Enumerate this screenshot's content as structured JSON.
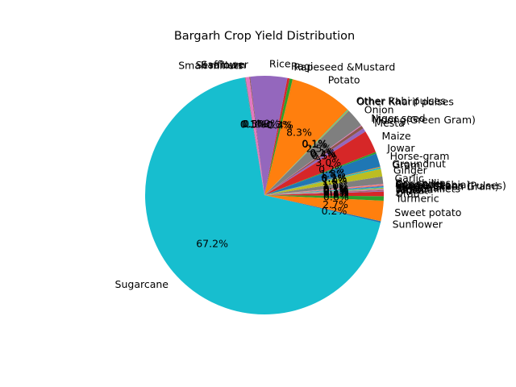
{
  "chart_data": {
    "type": "pie",
    "title": "Bargarh Crop Yield Distribution",
    "slices": [
      {
        "label": "Sugarcane",
        "value": 67.2,
        "pct_label": "67.2%",
        "color": "#17becf"
      },
      {
        "label": "Sunflower",
        "value": 0.2,
        "pct_label": "0.2%",
        "color": "#1f77b4"
      },
      {
        "label": "Sweet potato",
        "value": 2.7,
        "pct_label": "2.7%",
        "color": "#ff7f0e"
      },
      {
        "label": "Turmeric",
        "value": 0.6,
        "pct_label": "0.6%",
        "color": "#2ca02c"
      },
      {
        "label": "Urad",
        "value": 0.6,
        "pct_label": "0.6%",
        "color": "#d62728"
      },
      {
        "label": "Wheat",
        "value": 0.1,
        "pct_label": "0.1%",
        "color": "#9467bd"
      },
      {
        "label": "Tapioca",
        "value": 0.1,
        "pct_label": "0.1%",
        "color": "#8c564b"
      },
      {
        "label": "Small millets",
        "value": 0.1,
        "pct_label": "0.1%",
        "color": "#e377c2"
      },
      {
        "label": "Soyabean",
        "value": 0.1,
        "pct_label": "0.1%",
        "color": "#7f7f7f"
      },
      {
        "label": "Ragi",
        "value": 0.1,
        "pct_label": "0.1%",
        "color": "#bcbd22"
      },
      {
        "label": "Moong(Green Gram)",
        "value": 0.1,
        "pct_label": "0.1%",
        "color": "#17becf"
      },
      {
        "label": "Peas & beans (Pulses)",
        "value": 0.1,
        "pct_label": "0.1%",
        "color": "#1f77b4"
      },
      {
        "label": "Cowpea(Lobia)",
        "value": 0.1,
        "pct_label": "0.1%",
        "color": "#9467bd"
      },
      {
        "label": "Coriander",
        "value": 0.1,
        "pct_label": "0.1%",
        "color": "#ff7f0e"
      },
      {
        "label": "Dry chillies",
        "value": 0.1,
        "pct_label": "0.1%",
        "color": "#e377c2"
      },
      {
        "label": "Garlic",
        "value": 1.0,
        "pct_label": "1.0%",
        "color": "#7f7f7f"
      },
      {
        "label": "Ginger",
        "value": 1.0,
        "pct_label": "1.0%",
        "color": "#bcbd22"
      },
      {
        "label": "Gram",
        "value": 0.2,
        "pct_label": "0.2%",
        "color": "#17becf"
      },
      {
        "label": "Groundnut",
        "value": 0.1,
        "pct_label": "0.1%",
        "color": "#ff7f0e"
      },
      {
        "label": "Horse-gram",
        "value": 1.8,
        "pct_label": "1.8%",
        "color": "#1f77b4"
      },
      {
        "label": "Jowar",
        "value": 0.2,
        "pct_label": "0.2%",
        "color": "#2ca02c"
      },
      {
        "label": "Maize",
        "value": 3.0,
        "pct_label": "3.0%",
        "color": "#d62728"
      },
      {
        "label": "Mesta",
        "value": 0.5,
        "pct_label": "0.5%",
        "color": "#9467bd"
      },
      {
        "label": "Moong(Green Gram)",
        "value": 0.4,
        "pct_label": "0.4%",
        "color": "#8c564b"
      },
      {
        "label": "Niger seed",
        "value": 0.1,
        "pct_label": "0.1%",
        "color": "#e377c2"
      },
      {
        "label": "Onion",
        "value": 2.5,
        "pct_label": "2.5%",
        "color": "#7f7f7f"
      },
      {
        "label": "Other Kharif pulses",
        "value": 0.1,
        "pct_label": "0.1%",
        "color": "#bcbd22"
      },
      {
        "label": "Other Rabi pulses",
        "value": 0.1,
        "pct_label": "0.1%",
        "color": "#17becf"
      },
      {
        "label": "Potato",
        "value": 8.3,
        "pct_label": "8.3%",
        "color": "#ff7f0e"
      },
      {
        "label": "Rapeseed &Mustard",
        "value": 0.4,
        "pct_label": "0.4%",
        "color": "#2ca02c"
      },
      {
        "label": "Ragi",
        "value": 0.3,
        "pct_label": "0.3%",
        "color": "#d62728"
      },
      {
        "label": "Rice",
        "value": 4.9,
        "pct_label": "4.9%",
        "color": "#9467bd"
      },
      {
        "label": "Safflower",
        "value": 0.1,
        "pct_label": "0.1%",
        "color": "#8c564b"
      },
      {
        "label": "Sesamum",
        "value": 0.5,
        "pct_label": "0.5%",
        "color": "#e377c2"
      },
      {
        "label": "Small millets",
        "value": 0.1,
        "pct_label": "0.1%",
        "color": "#7f7f7f"
      }
    ]
  }
}
